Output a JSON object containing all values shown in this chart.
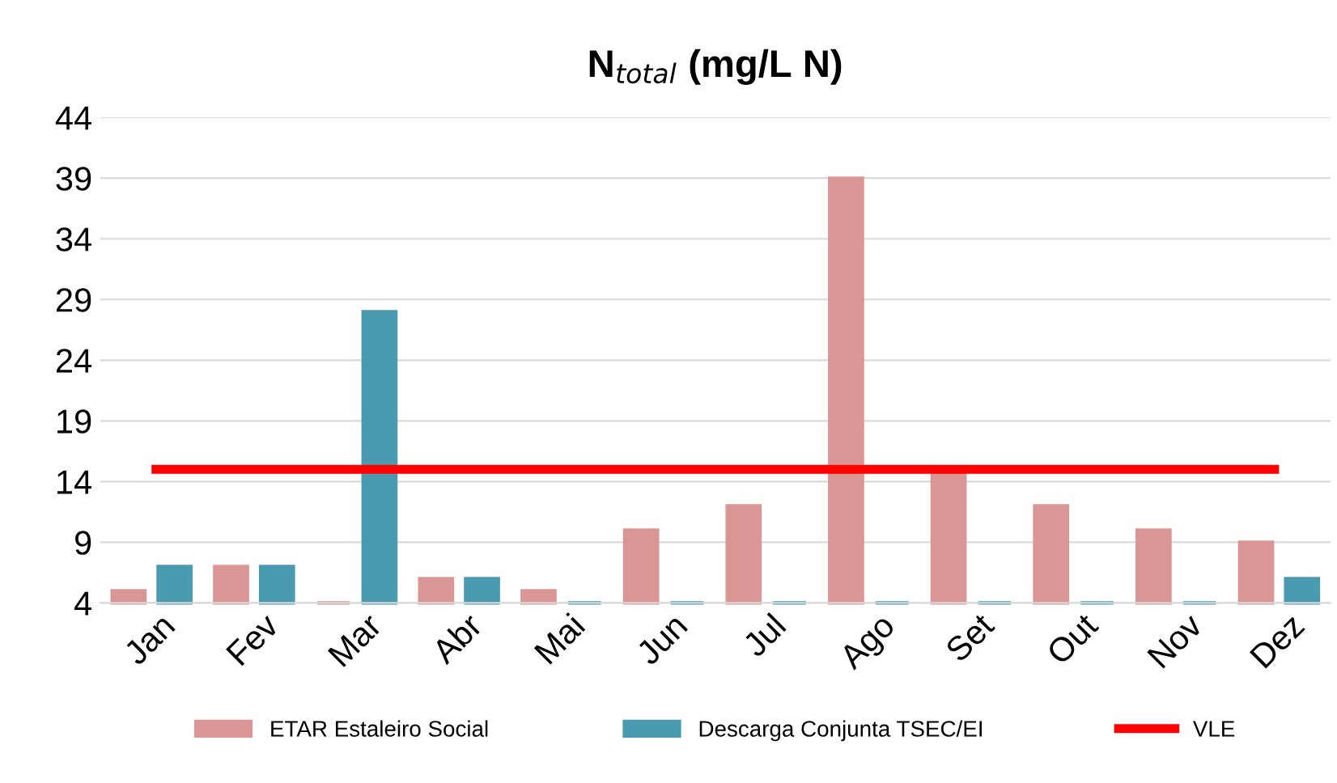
{
  "chart_data": {
    "type": "bar",
    "title": "N$_{total}$ (mg/L N)",
    "categories": [
      "Jan",
      "Fev",
      "Mar",
      "Abr",
      "Mai",
      "Jun",
      "Jul",
      "Ago",
      "Set",
      "Out",
      "Nov",
      "Dez"
    ],
    "series": [
      {
        "name": "ETAR Estaleiro Social",
        "color": "#d99694",
        "values": [
          5,
          7,
          4,
          6,
          5,
          10,
          12,
          39,
          15,
          12,
          10,
          9
        ]
      },
      {
        "name": "Descarga Conjunta TSEC/EI",
        "color": "#4a9bb0",
        "values": [
          7,
          7,
          28,
          6,
          4,
          4,
          4,
          4,
          4,
          4,
          4,
          6
        ]
      }
    ],
    "ref_lines": [
      {
        "axis": "y",
        "value": 15,
        "label": "VLE",
        "color": "#ff0000"
      }
    ],
    "ylim": [
      4,
      44
    ],
    "yticks": [
      4,
      9,
      14,
      19,
      24,
      29,
      34,
      39,
      44
    ],
    "grid": "y",
    "legend": "bottom"
  }
}
